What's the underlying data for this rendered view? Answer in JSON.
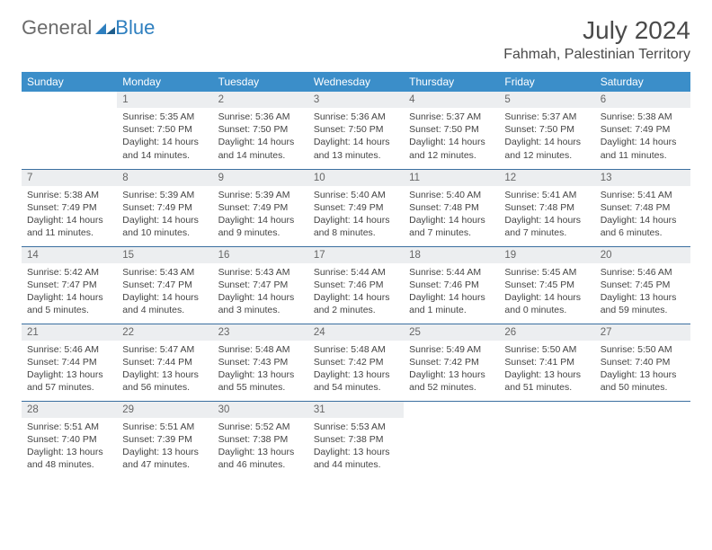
{
  "logo": {
    "part1": "General",
    "part2": "Blue"
  },
  "title": "July 2024",
  "location": "Fahmah, Palestinian Territory",
  "colors": {
    "header_bg": "#3b8ec9",
    "header_fg": "#ffffff",
    "row_border": "#3b6fa0",
    "daynum_bg": "#eceef0",
    "logo_gray": "#6b6b6b",
    "logo_blue": "#2e7fbf"
  },
  "weekdays": [
    "Sunday",
    "Monday",
    "Tuesday",
    "Wednesday",
    "Thursday",
    "Friday",
    "Saturday"
  ],
  "weeks": [
    [
      null,
      {
        "n": "1",
        "sr": "Sunrise: 5:35 AM",
        "ss": "Sunset: 7:50 PM",
        "d1": "Daylight: 14 hours",
        "d2": "and 14 minutes."
      },
      {
        "n": "2",
        "sr": "Sunrise: 5:36 AM",
        "ss": "Sunset: 7:50 PM",
        "d1": "Daylight: 14 hours",
        "d2": "and 14 minutes."
      },
      {
        "n": "3",
        "sr": "Sunrise: 5:36 AM",
        "ss": "Sunset: 7:50 PM",
        "d1": "Daylight: 14 hours",
        "d2": "and 13 minutes."
      },
      {
        "n": "4",
        "sr": "Sunrise: 5:37 AM",
        "ss": "Sunset: 7:50 PM",
        "d1": "Daylight: 14 hours",
        "d2": "and 12 minutes."
      },
      {
        "n": "5",
        "sr": "Sunrise: 5:37 AM",
        "ss": "Sunset: 7:50 PM",
        "d1": "Daylight: 14 hours",
        "d2": "and 12 minutes."
      },
      {
        "n": "6",
        "sr": "Sunrise: 5:38 AM",
        "ss": "Sunset: 7:49 PM",
        "d1": "Daylight: 14 hours",
        "d2": "and 11 minutes."
      }
    ],
    [
      {
        "n": "7",
        "sr": "Sunrise: 5:38 AM",
        "ss": "Sunset: 7:49 PM",
        "d1": "Daylight: 14 hours",
        "d2": "and 11 minutes."
      },
      {
        "n": "8",
        "sr": "Sunrise: 5:39 AM",
        "ss": "Sunset: 7:49 PM",
        "d1": "Daylight: 14 hours",
        "d2": "and 10 minutes."
      },
      {
        "n": "9",
        "sr": "Sunrise: 5:39 AM",
        "ss": "Sunset: 7:49 PM",
        "d1": "Daylight: 14 hours",
        "d2": "and 9 minutes."
      },
      {
        "n": "10",
        "sr": "Sunrise: 5:40 AM",
        "ss": "Sunset: 7:49 PM",
        "d1": "Daylight: 14 hours",
        "d2": "and 8 minutes."
      },
      {
        "n": "11",
        "sr": "Sunrise: 5:40 AM",
        "ss": "Sunset: 7:48 PM",
        "d1": "Daylight: 14 hours",
        "d2": "and 7 minutes."
      },
      {
        "n": "12",
        "sr": "Sunrise: 5:41 AM",
        "ss": "Sunset: 7:48 PM",
        "d1": "Daylight: 14 hours",
        "d2": "and 7 minutes."
      },
      {
        "n": "13",
        "sr": "Sunrise: 5:41 AM",
        "ss": "Sunset: 7:48 PM",
        "d1": "Daylight: 14 hours",
        "d2": "and 6 minutes."
      }
    ],
    [
      {
        "n": "14",
        "sr": "Sunrise: 5:42 AM",
        "ss": "Sunset: 7:47 PM",
        "d1": "Daylight: 14 hours",
        "d2": "and 5 minutes."
      },
      {
        "n": "15",
        "sr": "Sunrise: 5:43 AM",
        "ss": "Sunset: 7:47 PM",
        "d1": "Daylight: 14 hours",
        "d2": "and 4 minutes."
      },
      {
        "n": "16",
        "sr": "Sunrise: 5:43 AM",
        "ss": "Sunset: 7:47 PM",
        "d1": "Daylight: 14 hours",
        "d2": "and 3 minutes."
      },
      {
        "n": "17",
        "sr": "Sunrise: 5:44 AM",
        "ss": "Sunset: 7:46 PM",
        "d1": "Daylight: 14 hours",
        "d2": "and 2 minutes."
      },
      {
        "n": "18",
        "sr": "Sunrise: 5:44 AM",
        "ss": "Sunset: 7:46 PM",
        "d1": "Daylight: 14 hours",
        "d2": "and 1 minute."
      },
      {
        "n": "19",
        "sr": "Sunrise: 5:45 AM",
        "ss": "Sunset: 7:45 PM",
        "d1": "Daylight: 14 hours",
        "d2": "and 0 minutes."
      },
      {
        "n": "20",
        "sr": "Sunrise: 5:46 AM",
        "ss": "Sunset: 7:45 PM",
        "d1": "Daylight: 13 hours",
        "d2": "and 59 minutes."
      }
    ],
    [
      {
        "n": "21",
        "sr": "Sunrise: 5:46 AM",
        "ss": "Sunset: 7:44 PM",
        "d1": "Daylight: 13 hours",
        "d2": "and 57 minutes."
      },
      {
        "n": "22",
        "sr": "Sunrise: 5:47 AM",
        "ss": "Sunset: 7:44 PM",
        "d1": "Daylight: 13 hours",
        "d2": "and 56 minutes."
      },
      {
        "n": "23",
        "sr": "Sunrise: 5:48 AM",
        "ss": "Sunset: 7:43 PM",
        "d1": "Daylight: 13 hours",
        "d2": "and 55 minutes."
      },
      {
        "n": "24",
        "sr": "Sunrise: 5:48 AM",
        "ss": "Sunset: 7:42 PM",
        "d1": "Daylight: 13 hours",
        "d2": "and 54 minutes."
      },
      {
        "n": "25",
        "sr": "Sunrise: 5:49 AM",
        "ss": "Sunset: 7:42 PM",
        "d1": "Daylight: 13 hours",
        "d2": "and 52 minutes."
      },
      {
        "n": "26",
        "sr": "Sunrise: 5:50 AM",
        "ss": "Sunset: 7:41 PM",
        "d1": "Daylight: 13 hours",
        "d2": "and 51 minutes."
      },
      {
        "n": "27",
        "sr": "Sunrise: 5:50 AM",
        "ss": "Sunset: 7:40 PM",
        "d1": "Daylight: 13 hours",
        "d2": "and 50 minutes."
      }
    ],
    [
      {
        "n": "28",
        "sr": "Sunrise: 5:51 AM",
        "ss": "Sunset: 7:40 PM",
        "d1": "Daylight: 13 hours",
        "d2": "and 48 minutes."
      },
      {
        "n": "29",
        "sr": "Sunrise: 5:51 AM",
        "ss": "Sunset: 7:39 PM",
        "d1": "Daylight: 13 hours",
        "d2": "and 47 minutes."
      },
      {
        "n": "30",
        "sr": "Sunrise: 5:52 AM",
        "ss": "Sunset: 7:38 PM",
        "d1": "Daylight: 13 hours",
        "d2": "and 46 minutes."
      },
      {
        "n": "31",
        "sr": "Sunrise: 5:53 AM",
        "ss": "Sunset: 7:38 PM",
        "d1": "Daylight: 13 hours",
        "d2": "and 44 minutes."
      },
      null,
      null,
      null
    ]
  ]
}
